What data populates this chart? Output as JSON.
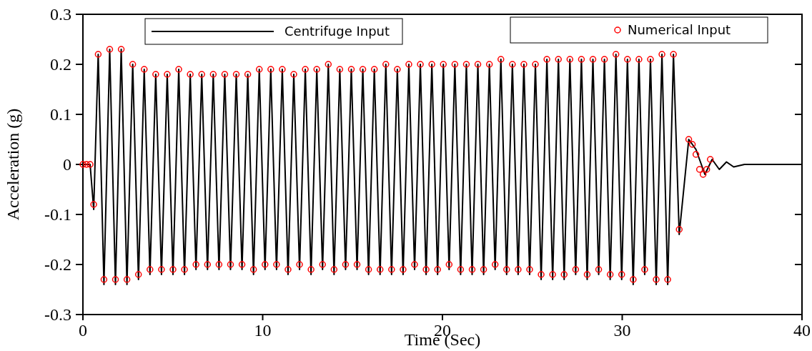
{
  "chart_data": {
    "type": "line",
    "xlabel": "Time (Sec)",
    "ylabel": "Acceleration (g)",
    "xlim": [
      0,
      40
    ],
    "xticks": [
      0,
      10,
      20,
      30,
      40
    ],
    "ylim": [
      -0.3,
      0.3
    ],
    "yticks": [
      -0.3,
      -0.2,
      -0.1,
      0,
      0.1,
      0.2,
      0.3
    ],
    "grid": false,
    "legend": "top",
    "series": [
      {
        "name": "Centrifuge Input",
        "color": "#000000",
        "marker": "none",
        "line_style": "solid",
        "x": [
          0,
          0.4,
          0.6,
          0.85,
          1.17,
          1.49,
          1.81,
          2.13,
          2.45,
          2.77,
          3.09,
          3.41,
          3.73,
          4.05,
          4.37,
          4.69,
          5.01,
          5.33,
          5.65,
          5.97,
          6.29,
          6.61,
          6.93,
          7.25,
          7.57,
          7.89,
          8.21,
          8.53,
          8.85,
          9.17,
          9.49,
          9.81,
          10.13,
          10.45,
          10.77,
          11.09,
          11.41,
          11.73,
          12.05,
          12.37,
          12.69,
          13.01,
          13.33,
          13.65,
          13.97,
          14.29,
          14.61,
          14.93,
          15.25,
          15.57,
          15.89,
          16.21,
          16.53,
          16.85,
          17.17,
          17.49,
          17.81,
          18.13,
          18.45,
          18.77,
          19.09,
          19.41,
          19.73,
          20.05,
          20.37,
          20.69,
          21.01,
          21.33,
          21.65,
          21.97,
          22.29,
          22.61,
          22.93,
          23.25,
          23.57,
          23.89,
          24.21,
          24.53,
          24.85,
          25.17,
          25.49,
          25.81,
          26.13,
          26.45,
          26.77,
          27.09,
          27.41,
          27.73,
          28.05,
          28.37,
          28.69,
          29.01,
          29.33,
          29.65,
          29.97,
          30.29,
          30.61,
          30.93,
          31.25,
          31.57,
          31.89,
          32.21,
          32.53,
          32.85,
          33.17,
          33.7,
          34.1,
          34.6,
          35.0,
          35.4,
          35.8,
          36.2,
          36.8,
          40
        ],
        "values": [
          0,
          0,
          -0.09,
          0.22,
          -0.24,
          0.23,
          -0.24,
          0.23,
          -0.24,
          0.2,
          -0.23,
          0.19,
          -0.22,
          0.18,
          -0.22,
          0.18,
          -0.22,
          0.19,
          -0.22,
          0.18,
          -0.21,
          0.18,
          -0.21,
          0.18,
          -0.21,
          0.18,
          -0.21,
          0.18,
          -0.21,
          0.18,
          -0.22,
          0.19,
          -0.21,
          0.19,
          -0.21,
          0.19,
          -0.22,
          0.18,
          -0.21,
          0.19,
          -0.22,
          0.19,
          -0.21,
          0.2,
          -0.22,
          0.19,
          -0.21,
          0.19,
          -0.21,
          0.19,
          -0.22,
          0.19,
          -0.22,
          0.2,
          -0.22,
          0.19,
          -0.22,
          0.2,
          -0.21,
          0.2,
          -0.22,
          0.2,
          -0.22,
          0.2,
          -0.21,
          0.2,
          -0.22,
          0.2,
          -0.22,
          0.2,
          -0.22,
          0.2,
          -0.21,
          0.21,
          -0.22,
          0.2,
          -0.22,
          0.2,
          -0.22,
          0.2,
          -0.23,
          0.21,
          -0.23,
          0.21,
          -0.23,
          0.21,
          -0.22,
          0.21,
          -0.23,
          0.21,
          -0.22,
          0.21,
          -0.23,
          0.22,
          -0.23,
          0.21,
          -0.24,
          0.21,
          -0.22,
          0.21,
          -0.24,
          0.22,
          -0.24,
          0.22,
          -0.14,
          0.05,
          0.03,
          -0.02,
          0.01,
          -0.01,
          0.005,
          -0.005,
          0,
          0
        ]
      },
      {
        "name": "Numerical Input",
        "type": "scatter",
        "color": "#ff0000",
        "marker": "circle",
        "x": [
          0,
          0.2,
          0.4,
          0.6,
          0.85,
          1.17,
          1.49,
          1.81,
          2.13,
          2.45,
          2.77,
          3.09,
          3.41,
          3.73,
          4.05,
          4.37,
          4.69,
          5.01,
          5.33,
          5.65,
          5.97,
          6.29,
          6.61,
          6.93,
          7.25,
          7.57,
          7.89,
          8.21,
          8.53,
          8.85,
          9.17,
          9.49,
          9.81,
          10.13,
          10.45,
          10.77,
          11.09,
          11.41,
          11.73,
          12.05,
          12.37,
          12.69,
          13.01,
          13.33,
          13.65,
          13.97,
          14.29,
          14.61,
          14.93,
          15.25,
          15.57,
          15.89,
          16.21,
          16.53,
          16.85,
          17.17,
          17.49,
          17.81,
          18.13,
          18.45,
          18.77,
          19.09,
          19.41,
          19.73,
          20.05,
          20.37,
          20.69,
          21.01,
          21.33,
          21.65,
          21.97,
          22.29,
          22.61,
          22.93,
          23.25,
          23.57,
          23.89,
          24.21,
          24.53,
          24.85,
          25.17,
          25.49,
          25.81,
          26.13,
          26.45,
          26.77,
          27.09,
          27.41,
          27.73,
          28.05,
          28.37,
          28.69,
          29.01,
          29.33,
          29.65,
          29.97,
          30.29,
          30.61,
          30.93,
          31.25,
          31.57,
          31.89,
          32.21,
          32.53,
          32.85,
          33.17,
          33.7,
          33.9,
          34.1,
          34.3,
          34.5,
          34.7,
          34.9
        ],
        "values": [
          0,
          0,
          0,
          -0.08,
          0.22,
          -0.23,
          0.23,
          -0.23,
          0.23,
          -0.23,
          0.2,
          -0.22,
          0.19,
          -0.21,
          0.18,
          -0.21,
          0.18,
          -0.21,
          0.19,
          -0.21,
          0.18,
          -0.2,
          0.18,
          -0.2,
          0.18,
          -0.2,
          0.18,
          -0.2,
          0.18,
          -0.2,
          0.18,
          -0.21,
          0.19,
          -0.2,
          0.19,
          -0.2,
          0.19,
          -0.21,
          0.18,
          -0.2,
          0.19,
          -0.21,
          0.19,
          -0.2,
          0.2,
          -0.21,
          0.19,
          -0.2,
          0.19,
          -0.2,
          0.19,
          -0.21,
          0.19,
          -0.21,
          0.2,
          -0.21,
          0.19,
          -0.21,
          0.2,
          -0.2,
          0.2,
          -0.21,
          0.2,
          -0.21,
          0.2,
          -0.2,
          0.2,
          -0.21,
          0.2,
          -0.21,
          0.2,
          -0.21,
          0.2,
          -0.2,
          0.21,
          -0.21,
          0.2,
          -0.21,
          0.2,
          -0.21,
          0.2,
          -0.22,
          0.21,
          -0.22,
          0.21,
          -0.22,
          0.21,
          -0.21,
          0.21,
          -0.22,
          0.21,
          -0.21,
          0.21,
          -0.22,
          0.22,
          -0.22,
          0.21,
          -0.23,
          0.21,
          -0.21,
          0.21,
          -0.23,
          0.22,
          -0.23,
          0.22,
          -0.13,
          0.05,
          0.04,
          0.02,
          -0.01,
          -0.02,
          -0.01,
          0.01
        ]
      }
    ]
  }
}
